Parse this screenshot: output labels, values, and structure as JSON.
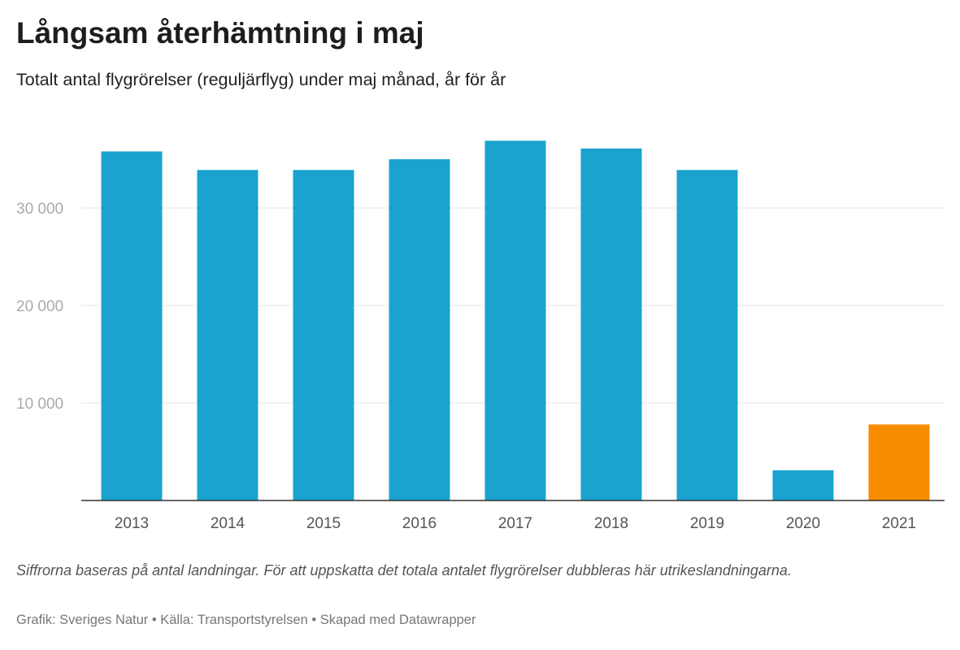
{
  "header": {
    "title": "Långsam återhämtning i maj",
    "subtitle": "Totalt antal flygrörelser (reguljärflyg) under maj månad, år för år"
  },
  "chart_data": {
    "type": "bar",
    "title": "Långsam återhämtning i maj",
    "subtitle": "Totalt antal flygrörelser (reguljärflyg) under maj månad, år för år",
    "xlabel": "",
    "ylabel": "",
    "categories": [
      "2013",
      "2014",
      "2015",
      "2016",
      "2017",
      "2018",
      "2019",
      "2020",
      "2021"
    ],
    "values": [
      35800,
      33900,
      33900,
      35000,
      36900,
      36100,
      33900,
      3100,
      7800
    ],
    "highlight_index": 8,
    "colors": {
      "bar": "#1aa3cf",
      "highlight": "#f78c00",
      "grid": "#e6e6e6",
      "axis": "#333333"
    },
    "ylim": [
      0,
      40000
    ],
    "yticks": [
      10000,
      20000,
      30000
    ],
    "ytick_labels": [
      "10 000",
      "20 000",
      "30 000"
    ],
    "grid": true,
    "legend": "none"
  },
  "notes": {
    "text": "Siffrorna baseras på antal landningar. För att uppskatta det totala antalet flygrörelser dubbleras här utrikeslandningarna."
  },
  "footer": {
    "text": "Grafik: Sveriges Natur • Källa: Transportstyrelsen • Skapad med Datawrapper"
  }
}
